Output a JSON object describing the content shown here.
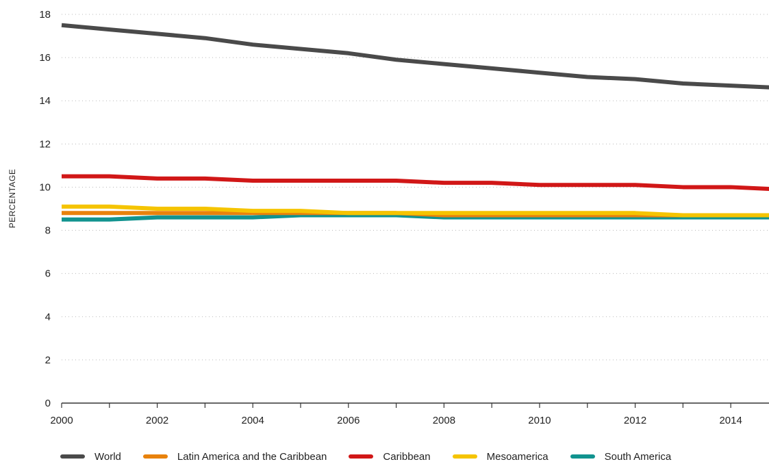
{
  "chart_data": {
    "type": "line",
    "title": "",
    "xlabel": "",
    "ylabel": "PERCENTAGE",
    "x": [
      2000,
      2001,
      2002,
      2003,
      2004,
      2005,
      2006,
      2007,
      2008,
      2009,
      2010,
      2011,
      2012,
      2013,
      2014,
      2015
    ],
    "xlim": [
      2000,
      2014.8
    ],
    "ylim": [
      0,
      18
    ],
    "xticks": [
      "2000",
      "2002",
      "2004",
      "2006",
      "2008",
      "2010",
      "2012",
      "2014"
    ],
    "yticks": [
      "0",
      "2",
      "4",
      "6",
      "8",
      "10",
      "12",
      "14",
      "16",
      "18"
    ],
    "grid": "horizontal dotted",
    "legend_position": "bottom",
    "series": [
      {
        "name": "World",
        "color": "#4a4a4a",
        "values": [
          17.5,
          17.3,
          17.1,
          16.9,
          16.6,
          16.4,
          16.2,
          15.9,
          15.7,
          15.5,
          15.3,
          15.1,
          15.0,
          14.8,
          14.7,
          14.6
        ]
      },
      {
        "name": "Latin America and the Caribbean",
        "color": "#e8820c",
        "values": [
          8.8,
          8.8,
          8.8,
          8.8,
          8.8,
          8.8,
          8.8,
          8.8,
          8.7,
          8.7,
          8.7,
          8.7,
          8.7,
          8.7,
          8.7,
          8.7
        ]
      },
      {
        "name": "Caribbean",
        "color": "#d11717",
        "values": [
          10.5,
          10.5,
          10.4,
          10.4,
          10.3,
          10.3,
          10.3,
          10.3,
          10.2,
          10.2,
          10.1,
          10.1,
          10.1,
          10.0,
          10.0,
          9.9
        ]
      },
      {
        "name": "Mesoamerica",
        "color": "#f5c400",
        "values": [
          9.1,
          9.1,
          9.0,
          9.0,
          8.9,
          8.9,
          8.8,
          8.8,
          8.8,
          8.8,
          8.8,
          8.8,
          8.8,
          8.7,
          8.7,
          8.7
        ]
      },
      {
        "name": "South America",
        "color": "#11938f",
        "values": [
          8.5,
          8.5,
          8.6,
          8.6,
          8.6,
          8.7,
          8.7,
          8.7,
          8.6,
          8.6,
          8.6,
          8.6,
          8.6,
          8.6,
          8.6,
          8.6
        ]
      }
    ]
  }
}
